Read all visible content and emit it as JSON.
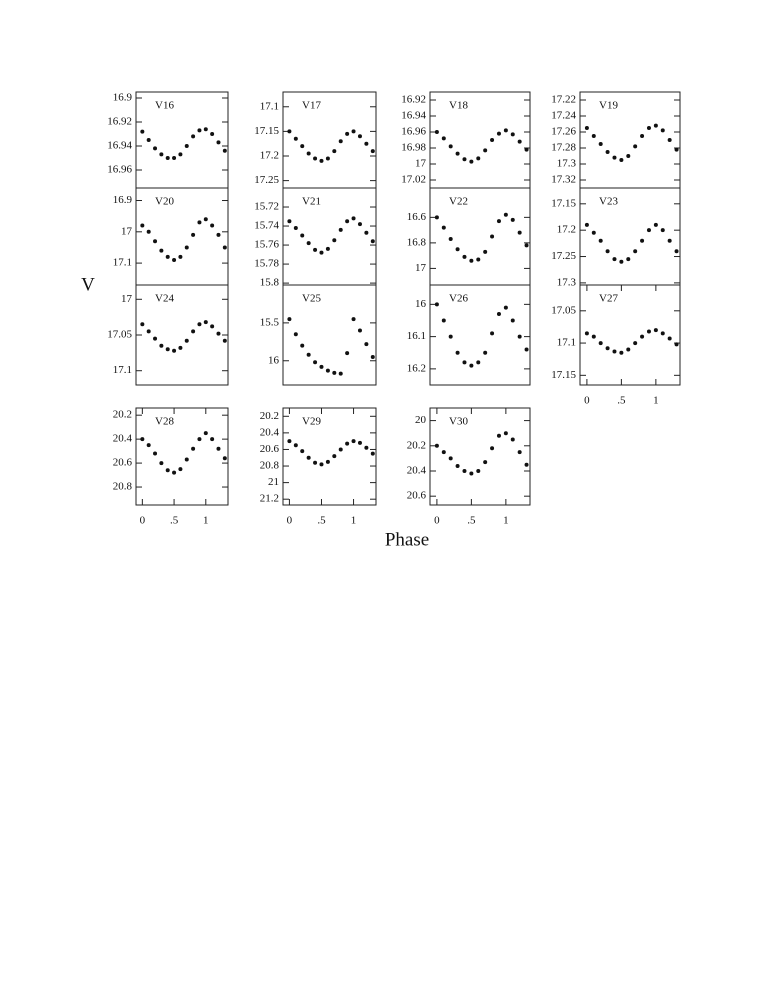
{
  "y_label": "V",
  "x_label": "Phase",
  "chart_data": [
    {
      "type": "scatter",
      "title": "V16",
      "x": [
        0,
        0.1,
        0.2,
        0.3,
        0.4,
        0.5,
        0.6,
        0.7,
        0.8,
        0.9,
        1,
        1.1,
        1.2,
        1.3
      ],
      "values": [
        16.928,
        16.935,
        16.942,
        16.947,
        16.95,
        16.95,
        16.947,
        16.94,
        16.932,
        16.927,
        16.926,
        16.93,
        16.937,
        16.944
      ],
      "color": "#111111",
      "xlim": [
        -0.1,
        1.35
      ],
      "ylim": [
        16.975,
        16.895
      ],
      "yticks": [
        16.9,
        16.92,
        16.94,
        16.96
      ]
    },
    {
      "type": "scatter",
      "title": "V17",
      "x": [
        0,
        0.1,
        0.2,
        0.3,
        0.4,
        0.5,
        0.6,
        0.7,
        0.8,
        0.9,
        1,
        1.1,
        1.2,
        1.3
      ],
      "values": [
        17.15,
        17.165,
        17.18,
        17.195,
        17.205,
        17.21,
        17.205,
        17.19,
        17.17,
        17.155,
        17.15,
        17.16,
        17.175,
        17.19
      ],
      "color": "#111111",
      "xlim": [
        -0.1,
        1.35
      ],
      "ylim": [
        17.265,
        17.07
      ],
      "yticks": [
        17.1,
        17.15,
        17.2,
        17.25
      ]
    },
    {
      "type": "scatter",
      "title": "V18",
      "x": [
        0,
        0.1,
        0.2,
        0.3,
        0.4,
        0.5,
        0.6,
        0.7,
        0.8,
        0.9,
        1,
        1.1,
        1.2,
        1.3
      ],
      "values": [
        16.96,
        16.968,
        16.978,
        16.987,
        16.994,
        16.997,
        16.993,
        16.983,
        16.97,
        16.962,
        16.958,
        16.963,
        16.972,
        16.982
      ],
      "color": "#111111",
      "xlim": [
        -0.1,
        1.35
      ],
      "ylim": [
        17.03,
        16.91
      ],
      "yticks": [
        16.92,
        16.94,
        16.96,
        16.98,
        17,
        17.02
      ]
    },
    {
      "type": "scatter",
      "title": "V19",
      "x": [
        0,
        0.1,
        0.2,
        0.3,
        0.4,
        0.5,
        0.6,
        0.7,
        0.8,
        0.9,
        1,
        1.1,
        1.2,
        1.3
      ],
      "values": [
        17.255,
        17.265,
        17.275,
        17.285,
        17.292,
        17.295,
        17.29,
        17.278,
        17.265,
        17.255,
        17.252,
        17.258,
        17.27,
        17.282
      ],
      "color": "#111111",
      "xlim": [
        -0.1,
        1.35
      ],
      "ylim": [
        17.33,
        17.21
      ],
      "yticks": [
        17.22,
        17.24,
        17.26,
        17.28,
        17.3,
        17.32
      ]
    },
    {
      "type": "scatter",
      "title": "V20",
      "x": [
        0,
        0.1,
        0.2,
        0.3,
        0.4,
        0.5,
        0.6,
        0.7,
        0.8,
        0.9,
        1,
        1.1,
        1.2,
        1.3
      ],
      "values": [
        16.98,
        17.0,
        17.03,
        17.06,
        17.08,
        17.09,
        17.08,
        17.05,
        17.01,
        16.97,
        16.96,
        16.98,
        17.01,
        17.05
      ],
      "color": "#111111",
      "xlim": [
        -0.1,
        1.35
      ],
      "ylim": [
        17.17,
        16.86
      ],
      "yticks": [
        16.9,
        17,
        17.1
      ]
    },
    {
      "type": "scatter",
      "title": "V21",
      "x": [
        0,
        0.1,
        0.2,
        0.3,
        0.4,
        0.5,
        0.6,
        0.7,
        0.8,
        0.9,
        1,
        1.1,
        1.2,
        1.3
      ],
      "values": [
        15.735,
        15.742,
        15.75,
        15.758,
        15.765,
        15.768,
        15.764,
        15.755,
        15.744,
        15.735,
        15.732,
        15.738,
        15.747,
        15.756
      ],
      "color": "#111111",
      "xlim": [
        -0.1,
        1.35
      ],
      "ylim": [
        15.802,
        15.7
      ],
      "yticks": [
        15.72,
        15.74,
        15.76,
        15.78,
        15.8
      ]
    },
    {
      "type": "scatter",
      "title": "V22",
      "x": [
        0,
        0.1,
        0.2,
        0.3,
        0.4,
        0.5,
        0.6,
        0.7,
        0.8,
        0.9,
        1,
        1.1,
        1.2,
        1.3
      ],
      "values": [
        16.6,
        16.68,
        16.77,
        16.85,
        16.91,
        16.94,
        16.93,
        16.87,
        16.75,
        16.63,
        16.58,
        16.62,
        16.72,
        16.82
      ],
      "color": "#111111",
      "xlim": [
        -0.1,
        1.35
      ],
      "ylim": [
        17.13,
        16.37
      ],
      "yticks": [
        16.6,
        16.8,
        17
      ]
    },
    {
      "type": "scatter",
      "title": "V23",
      "x": [
        0,
        0.1,
        0.2,
        0.3,
        0.4,
        0.5,
        0.6,
        0.7,
        0.8,
        0.9,
        1,
        1.1,
        1.2,
        1.3
      ],
      "values": [
        17.19,
        17.205,
        17.22,
        17.24,
        17.255,
        17.26,
        17.255,
        17.24,
        17.22,
        17.2,
        17.19,
        17.2,
        17.22,
        17.24
      ],
      "color": "#111111",
      "xlim": [
        -0.1,
        1.35
      ],
      "ylim": [
        17.304,
        17.12
      ],
      "yticks": [
        17.15,
        17.2,
        17.25,
        17.3
      ]
    },
    {
      "type": "scatter",
      "title": "V24",
      "x": [
        0,
        0.1,
        0.2,
        0.3,
        0.4,
        0.5,
        0.6,
        0.7,
        0.8,
        0.9,
        1,
        1.1,
        1.2,
        1.3
      ],
      "values": [
        17.035,
        17.045,
        17.055,
        17.065,
        17.07,
        17.072,
        17.068,
        17.058,
        17.045,
        17.035,
        17.032,
        17.038,
        17.048,
        17.058
      ],
      "color": "#111111",
      "xlim": [
        -0.1,
        1.35
      ],
      "ylim": [
        17.12,
        16.98
      ],
      "yticks": [
        17,
        17.05,
        17.1
      ]
    },
    {
      "type": "scatter",
      "title": "V25",
      "x": [
        0,
        0.1,
        0.2,
        0.3,
        0.4,
        0.5,
        0.6,
        0.7,
        0.8,
        0.9,
        1,
        1.1,
        1.2,
        1.3
      ],
      "values": [
        15.45,
        15.65,
        15.8,
        15.92,
        16.02,
        16.08,
        16.13,
        16.16,
        16.17,
        15.9,
        15.45,
        15.6,
        15.78,
        15.95
      ],
      "color": "#111111",
      "xlim": [
        -0.1,
        1.35
      ],
      "ylim": [
        16.32,
        15.0
      ],
      "yticks": [
        15.5,
        16
      ]
    },
    {
      "type": "scatter",
      "title": "V26",
      "x": [
        0,
        0.1,
        0.2,
        0.3,
        0.4,
        0.5,
        0.6,
        0.7,
        0.8,
        0.9,
        1,
        1.1,
        1.2,
        1.3
      ],
      "values": [
        16.0,
        16.05,
        16.1,
        16.15,
        16.18,
        16.19,
        16.18,
        16.15,
        16.09,
        16.03,
        16.01,
        16.05,
        16.1,
        16.14
      ],
      "color": "#111111",
      "xlim": [
        -0.1,
        1.35
      ],
      "ylim": [
        16.25,
        15.94
      ],
      "yticks": [
        16,
        16.1,
        16.2
      ]
    },
    {
      "type": "scatter",
      "title": "V27",
      "x": [
        0,
        0.1,
        0.2,
        0.3,
        0.4,
        0.5,
        0.6,
        0.7,
        0.8,
        0.9,
        1,
        1.1,
        1.2,
        1.3
      ],
      "values": [
        17.085,
        17.09,
        17.1,
        17.108,
        17.113,
        17.115,
        17.11,
        17.1,
        17.09,
        17.082,
        17.08,
        17.085,
        17.093,
        17.102
      ],
      "color": "#111111",
      "xlim": [
        -0.1,
        1.35
      ],
      "ylim": [
        17.165,
        17.01
      ],
      "yticks": [
        17.05,
        17.1,
        17.15
      ],
      "xticks": [
        0,
        {
          "value": 0.5,
          "label": ".5"
        },
        1
      ]
    },
    {
      "type": "scatter",
      "title": "V28",
      "x": [
        0,
        0.1,
        0.2,
        0.3,
        0.4,
        0.5,
        0.6,
        0.7,
        0.8,
        0.9,
        1,
        1.1,
        1.2,
        1.3
      ],
      "values": [
        20.4,
        20.45,
        20.52,
        20.6,
        20.66,
        20.68,
        20.65,
        20.57,
        20.48,
        20.4,
        20.35,
        20.4,
        20.48,
        20.56
      ],
      "color": "#111111",
      "xlim": [
        -0.1,
        1.35
      ],
      "ylim": [
        20.95,
        20.14
      ],
      "yticks": [
        20.2,
        20.4,
        20.6,
        20.8
      ],
      "xticks": [
        0,
        {
          "value": 0.5,
          "label": ".5"
        },
        1
      ]
    },
    {
      "type": "scatter",
      "title": "V29",
      "x": [
        0,
        0.1,
        0.2,
        0.3,
        0.4,
        0.5,
        0.6,
        0.7,
        0.8,
        0.9,
        1,
        1.1,
        1.2,
        1.3
      ],
      "values": [
        20.5,
        20.55,
        20.62,
        20.7,
        20.76,
        20.78,
        20.75,
        20.68,
        20.6,
        20.53,
        20.5,
        20.52,
        20.58,
        20.65
      ],
      "color": "#111111",
      "xlim": [
        -0.1,
        1.35
      ],
      "ylim": [
        21.27,
        20.1
      ],
      "yticks": [
        20.2,
        20.4,
        20.6,
        20.8,
        21,
        21.2
      ],
      "xticks": [
        0,
        {
          "value": 0.5,
          "label": ".5"
        },
        1
      ]
    },
    {
      "type": "scatter",
      "title": "V30",
      "x": [
        0,
        0.1,
        0.2,
        0.3,
        0.4,
        0.5,
        0.6,
        0.7,
        0.8,
        0.9,
        1,
        1.1,
        1.2,
        1.3
      ],
      "values": [
        20.2,
        20.25,
        20.3,
        20.36,
        20.4,
        20.42,
        20.4,
        20.33,
        20.22,
        20.12,
        20.1,
        20.15,
        20.25,
        20.35
      ],
      "color": "#111111",
      "xlim": [
        -0.1,
        1.35
      ],
      "ylim": [
        20.67,
        19.9
      ],
      "yticks": [
        20,
        20.2,
        20.4,
        20.6
      ],
      "xticks": [
        0,
        {
          "value": 0.5,
          "label": ".5"
        },
        1
      ]
    }
  ]
}
